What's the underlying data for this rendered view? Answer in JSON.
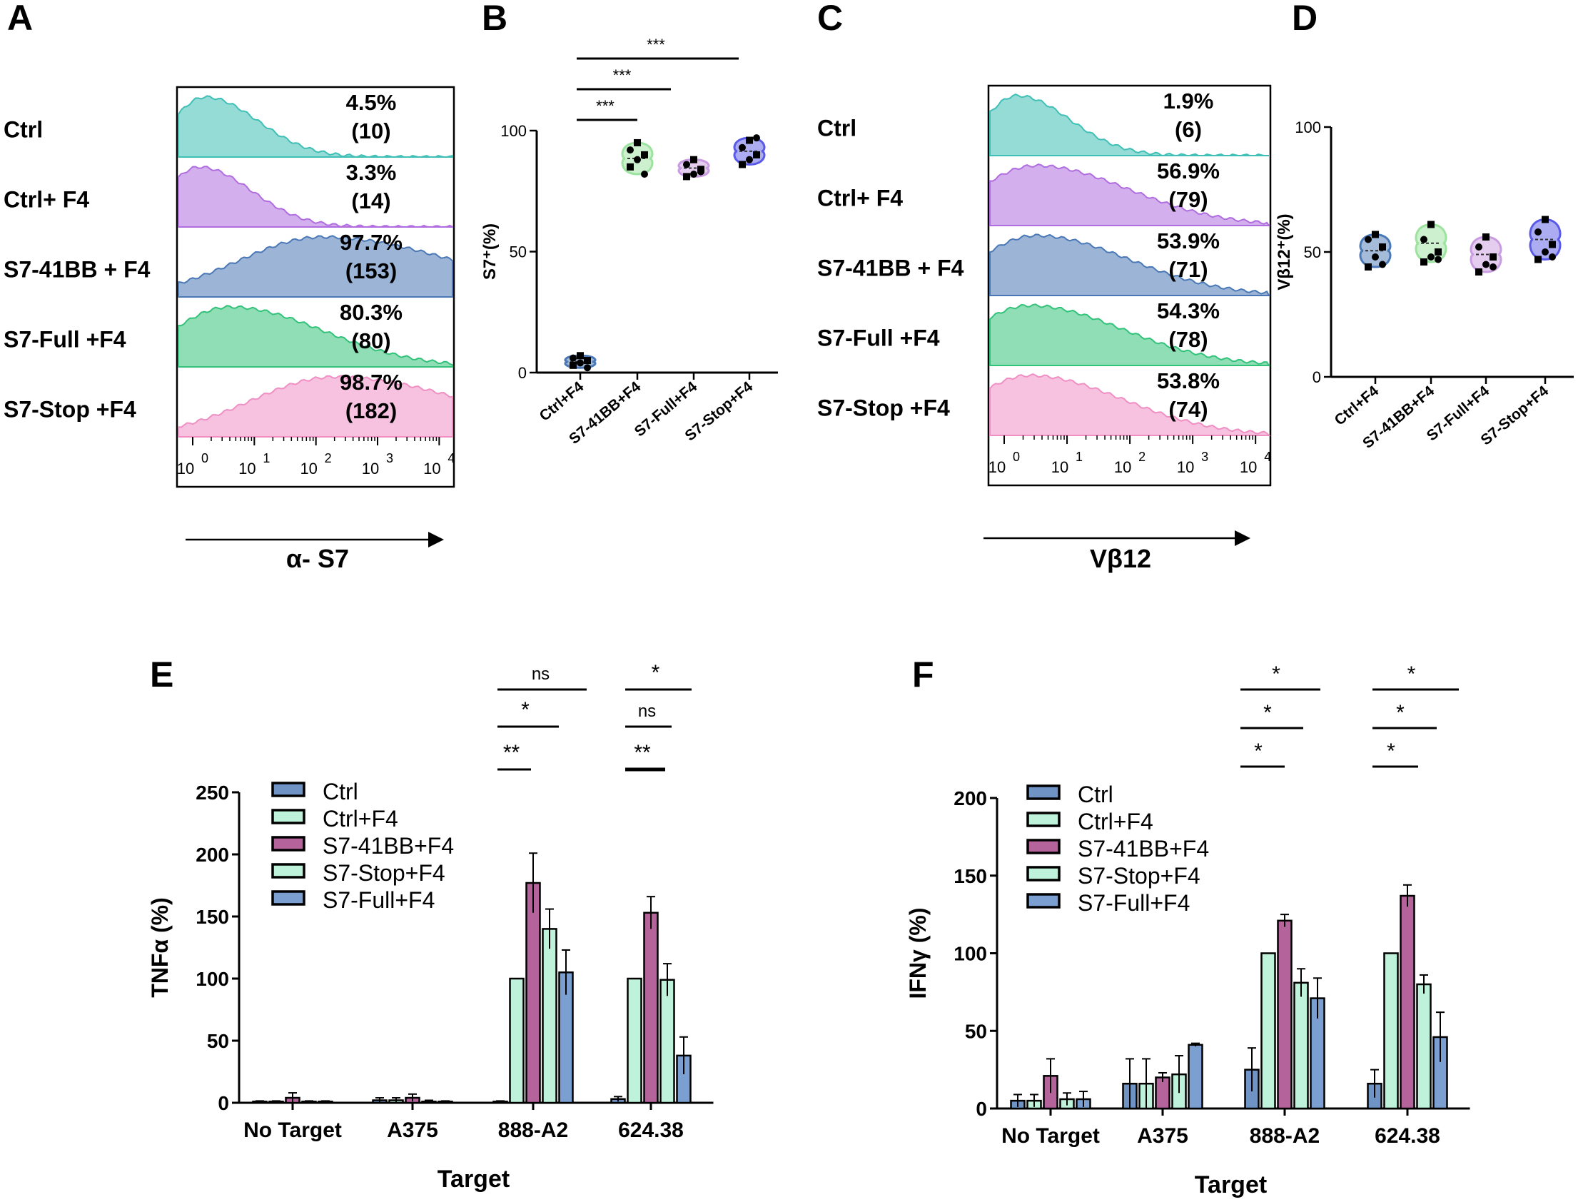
{
  "panel_letters": [
    "A",
    "B",
    "C",
    "D",
    "E",
    "F"
  ],
  "colors": {
    "teal": "#3fbfb5",
    "violet": "#b06de0",
    "steelblue": "#4a78b6",
    "green": "#33c27a",
    "pink": "#ef8fc4",
    "lightgreen": "#9be39e",
    "lilac": "#c99be0",
    "blue": "#5a5ae8",
    "bar_ctrl": "#6f93c4",
    "bar_ctrlf4": "#bff2da",
    "bar_41bb": "#b5649b",
    "bar_stop": "#bff2da",
    "bar_full": "#7b9fd1"
  },
  "chart_data": [
    {
      "panel": "A",
      "type": "histogram",
      "xlabel": "α- S7",
      "tick_labels": [
        {
          "base": "10",
          "exp": "0"
        },
        {
          "base": "10",
          "exp": "1"
        },
        {
          "base": "10",
          "exp": "2"
        },
        {
          "base": "10",
          "exp": "3"
        },
        {
          "base": "10",
          "exp": "4"
        }
      ],
      "rows": [
        {
          "label": "Ctrl",
          "percent": "4.5%",
          "count": "(10)",
          "color_key": "teal",
          "mode": 0.2
        },
        {
          "label": "Ctrl+ F4",
          "percent": "3.3%",
          "count": "(14)",
          "color_key": "violet",
          "mode": 0.1
        },
        {
          "label": "S7-41BB + F4",
          "percent": "97.7%",
          "count": "(153)",
          "color_key": "steelblue",
          "mode": 2.1
        },
        {
          "label": "S7-Full +F4",
          "percent": "80.3%",
          "count": "(80)",
          "color_key": "green",
          "mode": 0.6
        },
        {
          "label": "S7-Stop +F4",
          "percent": "98.7%",
          "count": "(182)",
          "color_key": "pink",
          "mode": 2.3
        }
      ]
    },
    {
      "panel": "B",
      "type": "violin",
      "ylabel": "S7⁺(%)",
      "ylim": [
        0,
        100
      ],
      "yticks": [
        "0",
        "50",
        "100"
      ],
      "categories": [
        "Ctrl+F4",
        "S7-41BB+F4",
        "S7-Full+F4",
        "S7-Stop+F4"
      ],
      "values": [
        [
          3,
          4,
          5,
          6,
          7,
          2
        ],
        [
          85,
          88,
          90,
          92,
          95,
          82
        ],
        [
          81,
          82,
          84,
          86,
          88,
          83
        ],
        [
          86,
          88,
          90,
          93,
          96,
          97
        ]
      ],
      "color_keys": [
        "steelblue",
        "lightgreen",
        "lilac",
        "blue"
      ],
      "significance": [
        "***",
        "***",
        "***"
      ]
    },
    {
      "panel": "C",
      "type": "histogram",
      "xlabel": "Vβ12",
      "tick_labels": [
        {
          "base": "10",
          "exp": "0"
        },
        {
          "base": "10",
          "exp": "1"
        },
        {
          "base": "10",
          "exp": "2"
        },
        {
          "base": "10",
          "exp": "3"
        },
        {
          "base": "10",
          "exp": "4"
        }
      ],
      "rows": [
        {
          "label": "Ctrl",
          "percent": "1.9%",
          "count": "(6)",
          "color_key": "teal",
          "mode": 0.2
        },
        {
          "label": "Ctrl+ F4",
          "percent": "56.9%",
          "count": "(79)",
          "color_key": "violet",
          "mode": 0.5
        },
        {
          "label": "S7-41BB + F4",
          "percent": "53.9%",
          "count": "(71)",
          "color_key": "steelblue",
          "mode": 0.5
        },
        {
          "label": "S7-Full +F4",
          "percent": "54.3%",
          "count": "(78)",
          "color_key": "green",
          "mode": 0.4
        },
        {
          "label": "S7-Stop +F4",
          "percent": "53.8%",
          "count": "(74)",
          "color_key": "pink",
          "mode": 0.4
        }
      ]
    },
    {
      "panel": "D",
      "type": "violin",
      "ylabel": "Vβ12⁺(%)",
      "ylim": [
        0,
        100
      ],
      "yticks": [
        "0",
        "50",
        "100"
      ],
      "categories": [
        "Ctrl+F4",
        "S7-41BB+F4",
        "S7-Full+F4",
        "S7-Stop+F4"
      ],
      "values": [
        [
          44,
          48,
          52,
          55,
          57,
          45
        ],
        [
          46,
          48,
          50,
          55,
          61,
          47
        ],
        [
          42,
          45,
          48,
          52,
          56,
          44
        ],
        [
          47,
          50,
          53,
          58,
          63,
          48
        ]
      ],
      "color_keys": [
        "steelblue",
        "lightgreen",
        "lilac",
        "blue"
      ]
    },
    {
      "panel": "E",
      "type": "bar",
      "title": "",
      "xlabel": "Target",
      "ylabel": "TNFα (%)",
      "ylim": [
        0,
        250
      ],
      "yticks": [
        "0",
        "50",
        "100",
        "150",
        "200",
        "250"
      ],
      "categories": [
        "No Target",
        "A375",
        "888-A2",
        "624.38"
      ],
      "series": [
        {
          "name": "Ctrl",
          "values": [
            1,
            2,
            1,
            3
          ],
          "errors": [
            0.5,
            2,
            0.5,
            2
          ],
          "color_key": "bar_ctrl"
        },
        {
          "name": "Ctrl+F4",
          "values": [
            1,
            2,
            100,
            100
          ],
          "errors": [
            0.5,
            2,
            0,
            0
          ],
          "color_key": "bar_ctrlf4"
        },
        {
          "name": "S7-41BB+F4",
          "values": [
            4,
            4,
            177,
            153
          ],
          "errors": [
            4,
            3,
            24,
            13
          ],
          "color_key": "bar_41bb"
        },
        {
          "name": "S7-Stop+F4",
          "values": [
            1,
            1,
            140,
            99
          ],
          "errors": [
            0.5,
            1,
            16,
            13
          ],
          "color_key": "bar_stop"
        },
        {
          "name": "S7-Full+F4",
          "values": [
            1,
            1,
            105,
            38
          ],
          "errors": [
            0.5,
            0.5,
            18,
            15
          ],
          "color_key": "bar_full"
        }
      ],
      "significance": [
        {
          "group": "888-A2",
          "label": "ns"
        },
        {
          "group": "888-A2",
          "label": "*"
        },
        {
          "group": "888-A2",
          "label": "**"
        },
        {
          "group": "624.38",
          "label": "*"
        },
        {
          "group": "624.38",
          "label": "ns"
        },
        {
          "group": "624.38",
          "label": "**"
        }
      ]
    },
    {
      "panel": "F",
      "type": "bar",
      "title": "",
      "xlabel": "Target",
      "ylabel": "IFNγ (%)",
      "ylim": [
        0,
        200
      ],
      "yticks": [
        "0",
        "50",
        "100",
        "150",
        "200"
      ],
      "categories": [
        "No Target",
        "A375",
        "888-A2",
        "624.38"
      ],
      "series": [
        {
          "name": "Ctrl",
          "values": [
            5,
            16,
            25,
            16
          ],
          "errors": [
            4,
            16,
            14,
            9
          ],
          "color_key": "bar_ctrl"
        },
        {
          "name": "Ctrl+F4",
          "values": [
            5,
            16,
            100,
            100
          ],
          "errors": [
            4,
            16,
            0,
            0
          ],
          "color_key": "bar_ctrlf4"
        },
        {
          "name": "S7-41BB+F4",
          "values": [
            21,
            20,
            121,
            137
          ],
          "errors": [
            11,
            3,
            4,
            7
          ],
          "color_key": "bar_41bb"
        },
        {
          "name": "S7-Stop+F4",
          "values": [
            6,
            22,
            81,
            80
          ],
          "errors": [
            4,
            12,
            9,
            6
          ],
          "color_key": "bar_stop"
        },
        {
          "name": "S7-Full+F4",
          "values": [
            6,
            41,
            71,
            46
          ],
          "errors": [
            5,
            1,
            13,
            16
          ],
          "color_key": "bar_full"
        }
      ],
      "significance": [
        {
          "group": "888-A2",
          "label": "*"
        },
        {
          "group": "888-A2",
          "label": "*"
        },
        {
          "group": "888-A2",
          "label": "*"
        },
        {
          "group": "624.38",
          "label": "*"
        },
        {
          "group": "624.38",
          "label": "*"
        },
        {
          "group": "624.38",
          "label": "*"
        }
      ]
    }
  ]
}
